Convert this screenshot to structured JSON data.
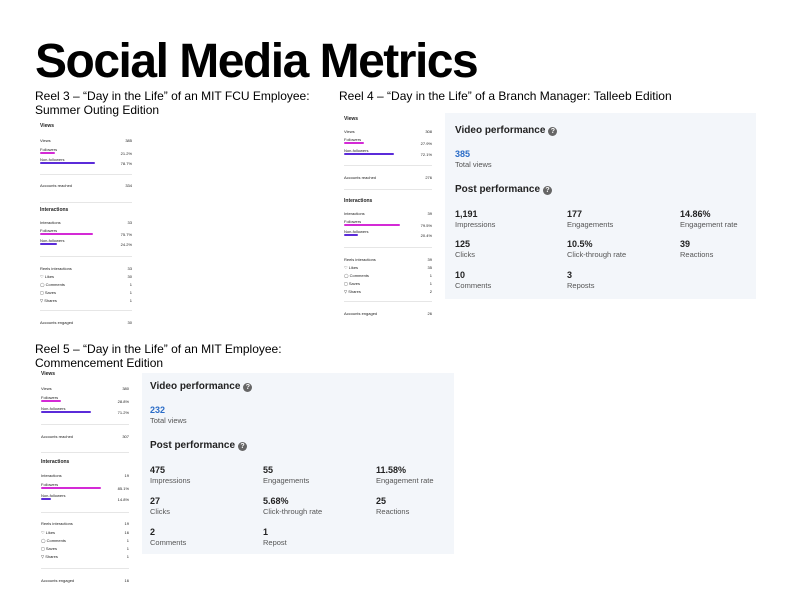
{
  "title": "Social Media Metrics",
  "reel3": {
    "heading_line1": "Reel 3 – “Day in the Life” of an MIT FCU Employee:",
    "heading_line2": "Summer Outing Edition",
    "views_label": "Views",
    "views_value": "385",
    "followers_label": "Followers",
    "followers_pct": "21.2%",
    "followers_fraction": 0.212,
    "nonfollowers_label": "Non-followers",
    "nonfollowers_pct": "78.7%",
    "nonfollowers_fraction": 0.787,
    "accounts_reached_label": "Accounts reached",
    "accounts_reached_value": "334",
    "interactions_label": "Interactions",
    "interactions_value": "33",
    "int_followers_label": "Followers",
    "int_followers_pct": "75.7%",
    "int_followers_fraction": 0.757,
    "int_nonfollowers_label": "Non-followers",
    "int_nonfollowers_pct": "24.2%",
    "int_nonfollowers_fraction": 0.242,
    "reels_interactions_label": "Reels interactions",
    "reels_interactions_value": "33",
    "likes_label": "Likes",
    "likes_value": "30",
    "comments_label": "Comments",
    "comments_value": "1",
    "saves_label": "Saves",
    "saves_value": "1",
    "shares_label": "Shares",
    "shares_value": "1",
    "accounts_engaged_label": "Accounts engaged",
    "accounts_engaged_value": "30"
  },
  "reel4": {
    "heading": "Reel 4 – “Day in the Life” of a Branch Manager: Talleeb Edition",
    "views_label": "Views",
    "views_value": "308",
    "followers_label": "Followers",
    "followers_pct": "27.9%",
    "followers_fraction": 0.279,
    "nonfollowers_label": "Non-followers",
    "nonfollowers_pct": "72.1%",
    "nonfollowers_fraction": 0.721,
    "accounts_reached_label": "Accounts reached",
    "accounts_reached_value": "276",
    "interactions_label": "Interactions",
    "interactions_value": "39",
    "int_followers_label": "Followers",
    "int_followers_pct": "79.5%",
    "int_followers_fraction": 0.795,
    "int_nonfollowers_label": "Non-followers",
    "int_nonfollowers_pct": "20.4%",
    "int_nonfollowers_fraction": 0.204,
    "reels_interactions_label": "Reels interactions",
    "reels_interactions_value": "39",
    "likes_label": "Likes",
    "likes_value": "35",
    "comments_label": "Comments",
    "comments_value": "1",
    "saves_label": "Saves",
    "saves_value": "1",
    "shares_label": "Shares",
    "shares_value": "2",
    "accounts_engaged_label": "Accounts engaged",
    "accounts_engaged_value": "26",
    "card": {
      "video_heading": "Video performance",
      "total_views_value": "385",
      "total_views_label": "Total views",
      "post_heading": "Post performance",
      "impressions_value": "1,191",
      "impressions_label": "Impressions",
      "engagements_value": "177",
      "engagements_label": "Engagements",
      "engagement_rate_value": "14.86%",
      "engagement_rate_label": "Engagement rate",
      "clicks_value": "125",
      "clicks_label": "Clicks",
      "ctr_value": "10.5%",
      "ctr_label": "Click-through rate",
      "reactions_value": "39",
      "reactions_label": "Reactions",
      "comments_value": "10",
      "comments_label": "Comments",
      "reposts_value": "3",
      "reposts_label": "Reposts"
    }
  },
  "reel5": {
    "heading_line1": "Reel  5 – “Day in the Life” of an MIT Employee:",
    "heading_line2": "Commencement Edition",
    "views_label": "Views",
    "views_value": "380",
    "followers_label": "Followers",
    "followers_pct": "28.8%",
    "followers_fraction": 0.288,
    "nonfollowers_label": "Non-followers",
    "nonfollowers_pct": "71.2%",
    "nonfollowers_fraction": 0.712,
    "accounts_reached_label": "Accounts reached",
    "accounts_reached_value": "307",
    "interactions_label": "Interactions",
    "interactions_value": "19",
    "int_followers_label": "Followers",
    "int_followers_pct": "85.1%",
    "int_followers_fraction": 0.851,
    "int_nonfollowers_label": "Non-followers",
    "int_nonfollowers_pct": "14.8%",
    "int_nonfollowers_fraction": 0.148,
    "reels_interactions_label": "Reels interactions",
    "reels_interactions_value": "19",
    "likes_label": "Likes",
    "likes_value": "16",
    "comments_label": "Comments",
    "comments_value": "1",
    "saves_label": "Saves",
    "saves_value": "1",
    "shares_label": "Shares",
    "shares_value": "1",
    "accounts_engaged_label": "Accounts engaged",
    "accounts_engaged_value": "16",
    "card": {
      "video_heading": "Video performance",
      "total_views_value": "232",
      "total_views_label": "Total views",
      "post_heading": "Post performance",
      "impressions_value": "475",
      "impressions_label": "Impressions",
      "engagements_value": "55",
      "engagements_label": "Engagements",
      "engagement_rate_value": "11.58%",
      "engagement_rate_label": "Engagement rate",
      "clicks_value": "27",
      "clicks_label": "Clicks",
      "ctr_value": "5.68%",
      "ctr_label": "Click-through rate",
      "reactions_value": "25",
      "reactions_label": "Reactions",
      "comments_value": "2",
      "comments_label": "Comments",
      "reposts_value": "1",
      "reposts_label": "Repost"
    }
  },
  "icons": {
    "help": "?"
  }
}
